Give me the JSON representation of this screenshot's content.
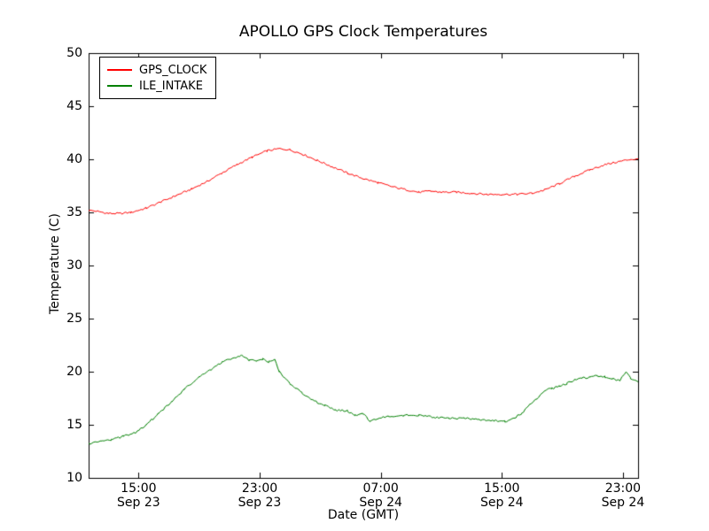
{
  "chart_data": {
    "type": "line",
    "title": "APOLLO GPS Clock Temperatures",
    "xlabel": "Date (GMT)",
    "ylabel": "Temperature (C)",
    "x_unit": "hours since Sep 23 00:00 GMT",
    "xlim": [
      11.7,
      48.0
    ],
    "ylim": [
      10,
      50
    ],
    "grid": false,
    "legend_position": "upper left",
    "yticks": [
      10,
      15,
      20,
      25,
      30,
      35,
      40,
      45,
      50
    ],
    "xticks": [
      {
        "value": 15,
        "line1": "15:00",
        "line2": "Sep 23"
      },
      {
        "value": 23,
        "line1": "23:00",
        "line2": "Sep 23"
      },
      {
        "value": 31,
        "line1": "07:00",
        "line2": "Sep 24"
      },
      {
        "value": 39,
        "line1": "15:00",
        "line2": "Sep 24"
      },
      {
        "value": 47,
        "line1": "23:00",
        "line2": "Sep 24"
      }
    ],
    "series": [
      {
        "name": "GPS_CLOCK",
        "color": "#ff0000",
        "noise": 0.09,
        "points": [
          [
            11.7,
            35.2
          ],
          [
            12.3,
            35.1
          ],
          [
            13.0,
            34.9
          ],
          [
            13.8,
            34.9
          ],
          [
            14.5,
            35.0
          ],
          [
            15.5,
            35.4
          ],
          [
            16.5,
            36.0
          ],
          [
            17.5,
            36.6
          ],
          [
            18.5,
            37.2
          ],
          [
            19.5,
            37.9
          ],
          [
            20.5,
            38.7
          ],
          [
            21.5,
            39.5
          ],
          [
            22.5,
            40.2
          ],
          [
            23.5,
            40.8
          ],
          [
            24.3,
            41.0
          ],
          [
            25.0,
            40.9
          ],
          [
            25.8,
            40.5
          ],
          [
            26.8,
            39.9
          ],
          [
            27.8,
            39.3
          ],
          [
            28.8,
            38.7
          ],
          [
            29.8,
            38.2
          ],
          [
            30.8,
            37.8
          ],
          [
            31.8,
            37.4
          ],
          [
            32.8,
            37.1
          ],
          [
            33.5,
            36.9
          ],
          [
            34.3,
            37.0
          ],
          [
            35.0,
            36.9
          ],
          [
            36.0,
            36.9
          ],
          [
            37.0,
            36.8
          ],
          [
            38.0,
            36.7
          ],
          [
            39.0,
            36.7
          ],
          [
            40.0,
            36.7
          ],
          [
            41.0,
            36.8
          ],
          [
            41.8,
            37.1
          ],
          [
            42.8,
            37.7
          ],
          [
            43.8,
            38.4
          ],
          [
            44.8,
            39.0
          ],
          [
            45.8,
            39.5
          ],
          [
            46.8,
            39.8
          ],
          [
            47.5,
            40.0
          ],
          [
            48.0,
            40.0
          ]
        ]
      },
      {
        "name": "ILE_INTAKE",
        "color": "#008000",
        "noise": 0.1,
        "points": [
          [
            11.7,
            13.2
          ],
          [
            12.5,
            13.4
          ],
          [
            13.2,
            13.6
          ],
          [
            14.0,
            13.9
          ],
          [
            14.8,
            14.3
          ],
          [
            15.5,
            15.0
          ],
          [
            16.3,
            16.0
          ],
          [
            17.2,
            17.2
          ],
          [
            18.0,
            18.3
          ],
          [
            19.0,
            19.5
          ],
          [
            19.8,
            20.2
          ],
          [
            20.5,
            20.9
          ],
          [
            21.2,
            21.3
          ],
          [
            21.8,
            21.5
          ],
          [
            22.3,
            21.1
          ],
          [
            22.8,
            21.0
          ],
          [
            23.2,
            21.2
          ],
          [
            23.6,
            20.9
          ],
          [
            24.0,
            21.1
          ],
          [
            24.3,
            20.0
          ],
          [
            25.0,
            18.9
          ],
          [
            25.8,
            18.0
          ],
          [
            26.5,
            17.3
          ],
          [
            27.3,
            16.8
          ],
          [
            28.0,
            16.4
          ],
          [
            28.8,
            16.3
          ],
          [
            29.3,
            15.9
          ],
          [
            29.8,
            16.1
          ],
          [
            30.3,
            15.3
          ],
          [
            30.8,
            15.6
          ],
          [
            31.5,
            15.8
          ],
          [
            32.5,
            15.9
          ],
          [
            33.5,
            15.9
          ],
          [
            34.5,
            15.7
          ],
          [
            35.5,
            15.6
          ],
          [
            36.5,
            15.6
          ],
          [
            37.5,
            15.5
          ],
          [
            38.5,
            15.4
          ],
          [
            39.2,
            15.3
          ],
          [
            39.8,
            15.6
          ],
          [
            40.3,
            16.1
          ],
          [
            40.8,
            16.8
          ],
          [
            41.3,
            17.5
          ],
          [
            41.8,
            18.2
          ],
          [
            42.3,
            18.4
          ],
          [
            42.8,
            18.7
          ],
          [
            43.3,
            18.9
          ],
          [
            43.8,
            19.2
          ],
          [
            44.3,
            19.4
          ],
          [
            44.8,
            19.5
          ],
          [
            45.3,
            19.6
          ],
          [
            45.8,
            19.5
          ],
          [
            46.3,
            19.3
          ],
          [
            46.8,
            19.2
          ],
          [
            47.2,
            19.9
          ],
          [
            47.5,
            19.4
          ],
          [
            48.0,
            19.0
          ]
        ]
      }
    ]
  }
}
